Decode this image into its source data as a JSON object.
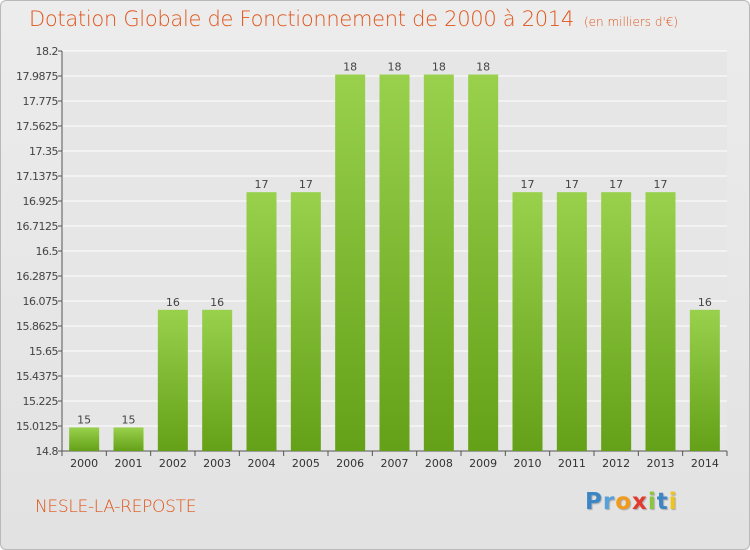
{
  "header": {
    "title": "Dotation Globale de Fonctionnement de 2000 à 2014",
    "subtitle": "(en milliers d'€)"
  },
  "footer": {
    "commune": "NESLE-LA-REPOSTE",
    "logo": "Proxiti"
  },
  "colors": {
    "bar_light": "#99d14c",
    "bar_dark": "#64a018",
    "title": "#e0551a",
    "grid": "#ffffff"
  },
  "chart_data": {
    "type": "bar",
    "categories": [
      "2000",
      "2001",
      "2002",
      "2003",
      "2004",
      "2005",
      "2006",
      "2007",
      "2008",
      "2009",
      "2010",
      "2011",
      "2012",
      "2013",
      "2014"
    ],
    "values": [
      15,
      15,
      16,
      16,
      17,
      17,
      18,
      18,
      18,
      18,
      17,
      17,
      17,
      17,
      16
    ],
    "bar_value_labels": [
      "15",
      "15",
      "16",
      "16",
      "17",
      "17",
      "18",
      "18",
      "18",
      "18",
      "17",
      "17",
      "17",
      "17",
      "16"
    ],
    "ylim": [
      14.8,
      18.2
    ],
    "yticks": [
      14.8,
      15.0125,
      15.225,
      15.4375,
      15.65,
      15.8625,
      16.075,
      16.2875,
      16.5,
      16.7125,
      16.925,
      17.1375,
      17.35,
      17.5625,
      17.775,
      17.9875,
      18.2
    ],
    "ytick_labels": [
      "14.8",
      "15.0125",
      "15.225",
      "15.4375",
      "15.65",
      "15.8625",
      "16.075",
      "16.2875",
      "16.5",
      "16.7125",
      "16.925",
      "17.1375",
      "17.35",
      "17.5625",
      "17.775",
      "17.9875",
      "18.2"
    ],
    "xlabel": "",
    "ylabel": "",
    "grid": true,
    "legend": "none"
  }
}
